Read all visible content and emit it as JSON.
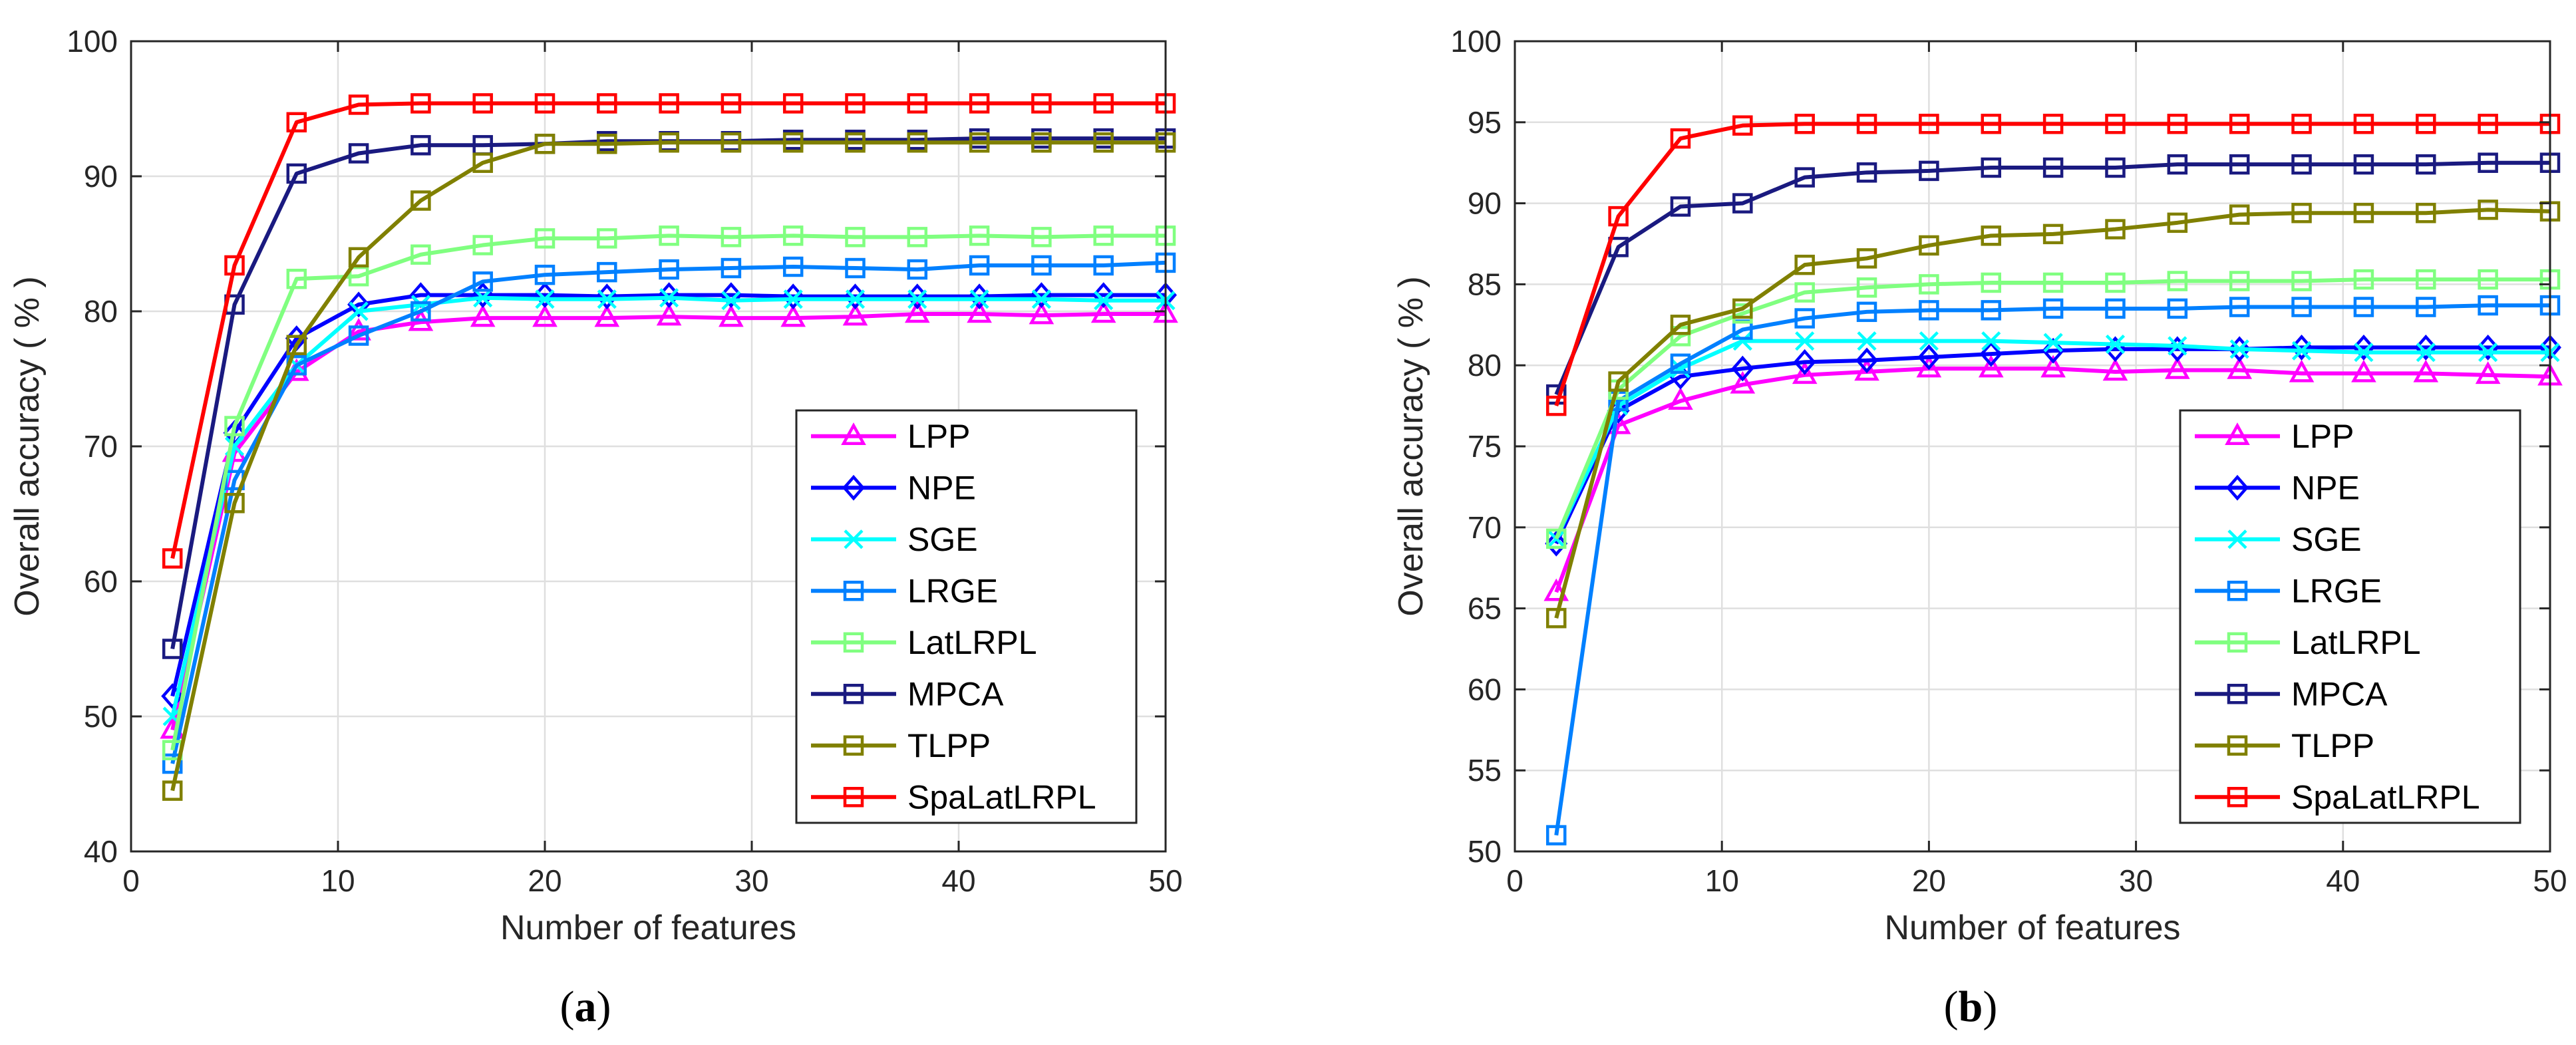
{
  "chart_data": [
    {
      "type": "line",
      "caption": "(a)",
      "caption_letter": "a",
      "xlabel": "Number of features",
      "ylabel": "Overall accuracy ( % )",
      "xlim": [
        0,
        50
      ],
      "ylim": [
        40,
        100
      ],
      "xticks": [
        0,
        10,
        20,
        30,
        40,
        50
      ],
      "yticks": [
        40,
        50,
        60,
        70,
        80,
        90,
        100
      ],
      "grid": true,
      "legend_position": "bottom-right",
      "x": [
        2,
        5,
        8,
        11,
        14,
        17,
        20,
        23,
        26,
        29,
        32,
        35,
        38,
        41,
        44,
        47,
        50
      ],
      "series": [
        {
          "name": "LPP",
          "color": "#ff00ff",
          "marker": "triangle",
          "values": [
            49,
            69.5,
            75.5,
            78.5,
            79.2,
            79.5,
            79.5,
            79.5,
            79.6,
            79.5,
            79.5,
            79.6,
            79.8,
            79.8,
            79.7,
            79.8,
            79.8
          ]
        },
        {
          "name": "NPE",
          "color": "#0000ff",
          "marker": "diamond",
          "values": [
            51.5,
            71,
            78,
            80.5,
            81.2,
            81.2,
            81.2,
            81.1,
            81.2,
            81.2,
            81.1,
            81.1,
            81.1,
            81.1,
            81.2,
            81.2,
            81.2
          ]
        },
        {
          "name": "SGE",
          "color": "#00ffff",
          "marker": "x",
          "values": [
            50,
            70,
            76,
            80,
            80.5,
            81,
            80.9,
            80.9,
            81,
            80.8,
            80.9,
            80.9,
            80.9,
            80.9,
            80.9,
            80.8,
            80.8
          ]
        },
        {
          "name": "LRGE",
          "color": "#0080ff",
          "marker": "square",
          "values": [
            46.5,
            67.5,
            76,
            78.2,
            80,
            82.2,
            82.7,
            82.9,
            83.1,
            83.2,
            83.3,
            83.2,
            83.1,
            83.4,
            83.4,
            83.4,
            83.6
          ]
        },
        {
          "name": "LatLRPL",
          "color": "#80ff80",
          "marker": "square",
          "values": [
            47.5,
            71.5,
            82.4,
            82.6,
            84.2,
            84.9,
            85.4,
            85.4,
            85.6,
            85.5,
            85.6,
            85.5,
            85.5,
            85.6,
            85.5,
            85.6,
            85.6
          ]
        },
        {
          "name": "MPCA",
          "color": "#1a1a80",
          "marker": "square",
          "values": [
            55,
            80.5,
            90.2,
            91.7,
            92.3,
            92.3,
            92.4,
            92.6,
            92.6,
            92.6,
            92.7,
            92.7,
            92.7,
            92.8,
            92.8,
            92.8,
            92.8
          ]
        },
        {
          "name": "TLPP",
          "color": "#808000",
          "marker": "square",
          "values": [
            44.5,
            65.8,
            77.5,
            84,
            88.2,
            91,
            92.4,
            92.4,
            92.5,
            92.5,
            92.5,
            92.5,
            92.5,
            92.5,
            92.5,
            92.5,
            92.5
          ]
        },
        {
          "name": "SpaLatLRPL",
          "color": "#ff0000",
          "marker": "square",
          "values": [
            61.7,
            83.4,
            94,
            95.3,
            95.4,
            95.4,
            95.4,
            95.4,
            95.4,
            95.4,
            95.4,
            95.4,
            95.4,
            95.4,
            95.4,
            95.4,
            95.4
          ]
        }
      ]
    },
    {
      "type": "line",
      "caption": "(b)",
      "caption_letter": "b",
      "xlabel": "Number of features",
      "ylabel": "Overall accuracy ( % )",
      "xlim": [
        0,
        50
      ],
      "ylim": [
        50,
        100
      ],
      "xticks": [
        0,
        10,
        20,
        30,
        40,
        50
      ],
      "yticks": [
        50,
        55,
        60,
        65,
        70,
        75,
        80,
        85,
        90,
        95,
        100
      ],
      "grid": true,
      "legend_position": "bottom-right",
      "x": [
        2,
        5,
        8,
        11,
        14,
        17,
        20,
        23,
        26,
        29,
        32,
        35,
        38,
        41,
        44,
        47,
        50
      ],
      "series": [
        {
          "name": "LPP",
          "color": "#ff00ff",
          "marker": "triangle",
          "values": [
            66,
            76.3,
            77.8,
            78.8,
            79.4,
            79.6,
            79.8,
            79.8,
            79.8,
            79.6,
            79.7,
            79.7,
            79.5,
            79.5,
            79.5,
            79.4,
            79.3
          ]
        },
        {
          "name": "NPE",
          "color": "#0000ff",
          "marker": "diamond",
          "values": [
            69,
            77.2,
            79.3,
            79.8,
            80.2,
            80.3,
            80.5,
            80.7,
            80.9,
            81,
            81,
            81,
            81.1,
            81.1,
            81.1,
            81.1,
            81.1
          ]
        },
        {
          "name": "SGE",
          "color": "#00ffff",
          "marker": "x",
          "values": [
            69.3,
            77.5,
            79.8,
            81.5,
            81.5,
            81.5,
            81.5,
            81.5,
            81.4,
            81.3,
            81.2,
            81,
            80.9,
            80.8,
            80.8,
            80.8,
            80.8
          ]
        },
        {
          "name": "LRGE",
          "color": "#0080ff",
          "marker": "square",
          "values": [
            51,
            77.8,
            80.1,
            82.2,
            82.9,
            83.3,
            83.4,
            83.4,
            83.5,
            83.5,
            83.5,
            83.6,
            83.6,
            83.6,
            83.6,
            83.7,
            83.7
          ]
        },
        {
          "name": "LatLRPL",
          "color": "#80ff80",
          "marker": "square",
          "values": [
            69.3,
            78.5,
            81.8,
            83.2,
            84.5,
            84.8,
            85,
            85.1,
            85.1,
            85.1,
            85.2,
            85.2,
            85.2,
            85.3,
            85.3,
            85.3,
            85.3
          ]
        },
        {
          "name": "MPCA",
          "color": "#1a1a80",
          "marker": "square",
          "values": [
            78.2,
            87.3,
            89.8,
            90,
            91.6,
            91.9,
            92,
            92.2,
            92.2,
            92.2,
            92.4,
            92.4,
            92.4,
            92.4,
            92.4,
            92.5,
            92.5
          ]
        },
        {
          "name": "TLPP",
          "color": "#808000",
          "marker": "square",
          "values": [
            64.4,
            79,
            82.5,
            83.5,
            86.2,
            86.6,
            87.4,
            88,
            88.1,
            88.4,
            88.8,
            89.3,
            89.4,
            89.4,
            89.4,
            89.6,
            89.5
          ]
        },
        {
          "name": "SpaLatLRPL",
          "color": "#ff0000",
          "marker": "square",
          "values": [
            77.5,
            89.2,
            94,
            94.8,
            94.9,
            94.9,
            94.9,
            94.9,
            94.9,
            94.9,
            94.9,
            94.9,
            94.9,
            94.9,
            94.9,
            94.9,
            94.9
          ]
        }
      ]
    }
  ]
}
